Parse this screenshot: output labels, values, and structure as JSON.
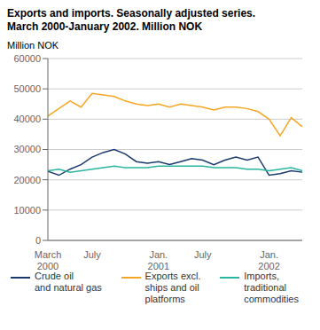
{
  "chart_data": {
    "type": "line",
    "title": "Exports and imports. Seasonally adjusted series.",
    "subtitle": "March 2000-January 2002. Million NOK",
    "ylabel": "Million NOK",
    "categories": [
      "March\n2000",
      null,
      null,
      null,
      "July",
      null,
      null,
      null,
      null,
      null,
      "Jan.\n2001",
      null,
      null,
      null,
      "July",
      null,
      null,
      null,
      null,
      null,
      "Jan.\n2002",
      null,
      null,
      null
    ],
    "series": [
      {
        "name": "Crude oil\nand natural gas",
        "color": "#1a3a6e",
        "values": [
          22800,
          21500,
          23500,
          25000,
          27500,
          29000,
          30000,
          28500,
          26000,
          25500,
          26000,
          25000,
          26000,
          27000,
          26500,
          25000,
          26500,
          27500,
          26500,
          27500,
          21500,
          22000,
          23000,
          22500
        ]
      },
      {
        "name": "Exports excl.\nships and oil\nplatforms",
        "color": "#f5a623",
        "values": [
          41000,
          43500,
          46000,
          44000,
          48500,
          48000,
          47500,
          46000,
          45000,
          44500,
          45000,
          44000,
          45000,
          44500,
          44000,
          43000,
          44000,
          44000,
          43500,
          42500,
          40000,
          34500,
          40500,
          37500
        ]
      },
      {
        "name": "Imports,\ntraditional\ncommodities",
        "color": "#2ab5a0",
        "values": [
          23000,
          23500,
          22500,
          23000,
          23500,
          24000,
          24500,
          24000,
          24000,
          24000,
          24500,
          24500,
          24500,
          24500,
          24500,
          24000,
          24000,
          24000,
          23500,
          23500,
          23000,
          23500,
          24000,
          23000
        ]
      }
    ],
    "ylim": [
      0,
      60000
    ],
    "yticks": [
      0,
      10000,
      20000,
      30000,
      40000,
      50000,
      60000
    ],
    "grid": true,
    "legend": "bottom"
  }
}
